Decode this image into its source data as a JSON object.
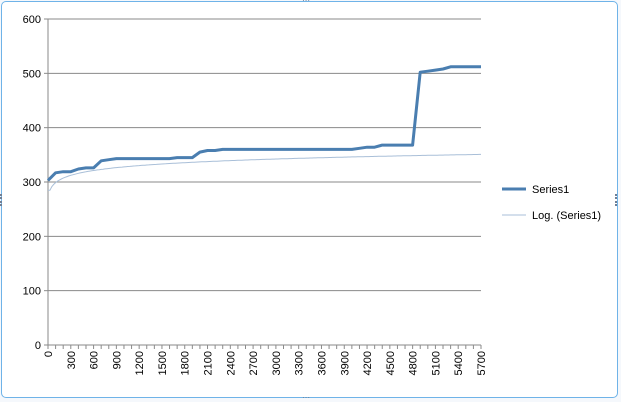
{
  "chart_data": {
    "type": "line",
    "title": "",
    "xlabel": "",
    "ylabel": "",
    "x_tick_labels": [
      "0",
      "300",
      "600",
      "900",
      "1200",
      "1500",
      "1800",
      "2100",
      "2400",
      "2700",
      "3000",
      "3300",
      "3600",
      "3900",
      "4200",
      "4500",
      "4800",
      "5100",
      "5400",
      "5700"
    ],
    "y_tick_labels": [
      "0",
      "100",
      "200",
      "300",
      "400",
      "500",
      "600"
    ],
    "xlim": [
      0,
      5700
    ],
    "ylim": [
      0,
      600
    ],
    "grid": "horizontal",
    "legend_position": "right",
    "series": [
      {
        "name": "Series1",
        "color": "#4a7eb0",
        "x": [
          0,
          100,
          200,
          300,
          400,
          500,
          600,
          700,
          800,
          900,
          1000,
          1100,
          1200,
          1300,
          1400,
          1500,
          1600,
          1700,
          1800,
          1900,
          2000,
          2100,
          2200,
          2300,
          2400,
          2500,
          2600,
          2700,
          2800,
          2900,
          3000,
          3100,
          3200,
          3300,
          3400,
          3500,
          3600,
          3700,
          3800,
          3900,
          4000,
          4100,
          4200,
          4300,
          4400,
          4500,
          4600,
          4700,
          4800,
          4900,
          5000,
          5100,
          5200,
          5300,
          5400,
          5500,
          5600,
          5700
        ],
        "y": [
          303,
          317,
          319,
          319,
          324,
          326,
          326,
          339,
          341,
          343,
          343,
          343,
          343,
          343,
          343,
          343,
          343,
          345,
          345,
          345,
          355,
          358,
          358,
          360,
          360,
          360,
          360,
          360,
          360,
          360,
          360,
          360,
          360,
          360,
          360,
          360,
          360,
          360,
          360,
          360,
          360,
          362,
          364,
          364,
          368,
          368,
          368,
          368,
          368,
          502,
          504,
          506,
          508,
          512,
          512,
          512,
          512,
          512
        ]
      },
      {
        "name": "Log. (Series1)",
        "color": "#a9bfd8",
        "trendline": "logarithmic",
        "a": 297,
        "b": 13.3
      }
    ]
  }
}
